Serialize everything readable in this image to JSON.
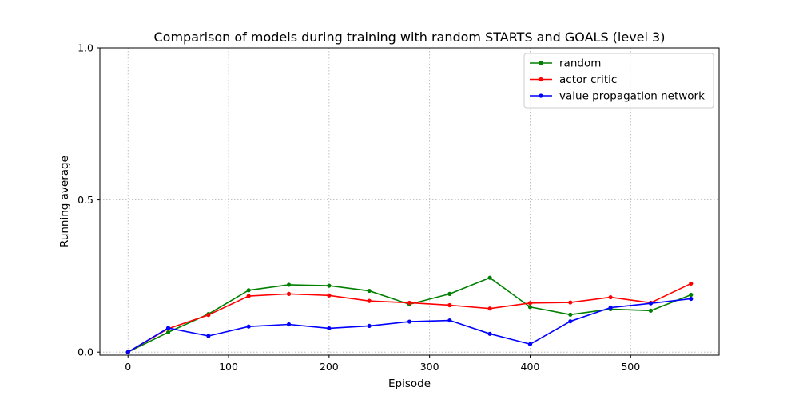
{
  "chart_data": {
    "type": "line",
    "title": "Comparison of models during training with random STARTS and GOALS (level 3)",
    "xlabel": "Episode",
    "ylabel": "Running average",
    "xlim": [
      -28,
      588
    ],
    "ylim": [
      -0.01,
      1.0
    ],
    "xticks": [
      0,
      100,
      200,
      300,
      400,
      500
    ],
    "yticks": [
      0.0,
      0.5,
      1.0
    ],
    "ytick_labels": [
      "0.0",
      "0.5",
      "1.0"
    ],
    "grid": true,
    "legend_position": "top-right",
    "x": [
      0,
      40,
      80,
      120,
      160,
      200,
      240,
      280,
      320,
      360,
      400,
      440,
      480,
      520,
      560
    ],
    "series": [
      {
        "name": "random",
        "color": "#008000",
        "values": [
          0.0,
          0.065,
          0.125,
          0.203,
          0.221,
          0.218,
          0.201,
          0.157,
          0.191,
          0.244,
          0.148,
          0.123,
          0.141,
          0.136,
          0.188
        ]
      },
      {
        "name": "actor critic",
        "color": "#ff0000",
        "values": [
          0.0,
          0.077,
          0.122,
          0.184,
          0.191,
          0.186,
          0.168,
          0.162,
          0.154,
          0.143,
          0.161,
          0.163,
          0.18,
          0.162,
          0.225
        ]
      },
      {
        "name": "value propagation network",
        "color": "#0000ff",
        "values": [
          0.0,
          0.079,
          0.053,
          0.084,
          0.091,
          0.078,
          0.086,
          0.1,
          0.104,
          0.06,
          0.026,
          0.101,
          0.146,
          0.16,
          0.175
        ]
      }
    ]
  }
}
